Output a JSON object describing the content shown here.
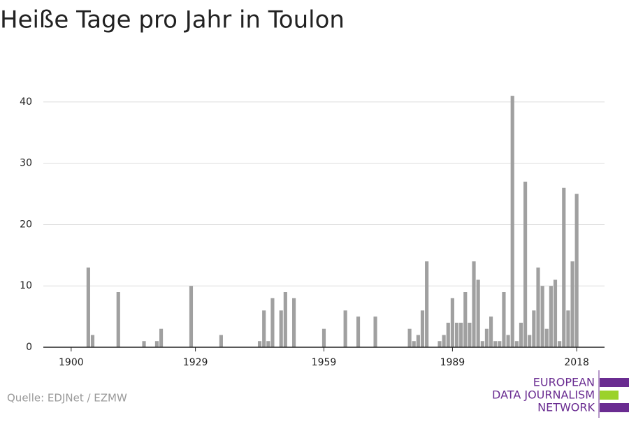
{
  "chart_data": {
    "type": "bar",
    "title": "Heiße Tage pro Jahr in Toulon",
    "source": "Quelle: EDJNet / EZMW",
    "logo": [
      "EUROPEAN",
      "DATA JOURNALISM",
      "NETWORK"
    ],
    "color": "#a0a0a0",
    "x": [
      1904,
      1905,
      1911,
      1917,
      1920,
      1921,
      1928,
      1935,
      1944,
      1945,
      1946,
      1947,
      1949,
      1950,
      1952,
      1959,
      1964,
      1967,
      1971,
      1979,
      1980,
      1981,
      1982,
      1983,
      1986,
      1987,
      1988,
      1989,
      1990,
      1991,
      1992,
      1993,
      1994,
      1995,
      1996,
      1997,
      1998,
      1999,
      2000,
      2001,
      2002,
      2003,
      2004,
      2005,
      2006,
      2007,
      2008,
      2009,
      2010,
      2011,
      2012,
      2013,
      2014,
      2015,
      2016,
      2017,
      2018
    ],
    "values": [
      13,
      2,
      9,
      1,
      1,
      3,
      10,
      2,
      1,
      6,
      1,
      8,
      6,
      9,
      8,
      3,
      6,
      5,
      5,
      3,
      1,
      2,
      6,
      14,
      1,
      2,
      4,
      8,
      4,
      4,
      9,
      4,
      14,
      11,
      1,
      3,
      5,
      1,
      1,
      9,
      2,
      41,
      1,
      4,
      27,
      2,
      6,
      13,
      10,
      3,
      10,
      11,
      1,
      26,
      6,
      14,
      25
    ],
    "xlim": [
      1893.5,
      2024.5
    ],
    "xticks": [
      1900,
      1929,
      1959,
      1989,
      2018
    ],
    "ylim": [
      0,
      45
    ],
    "yticks": [
      0,
      10,
      20,
      30,
      40
    ],
    "grid": true
  }
}
